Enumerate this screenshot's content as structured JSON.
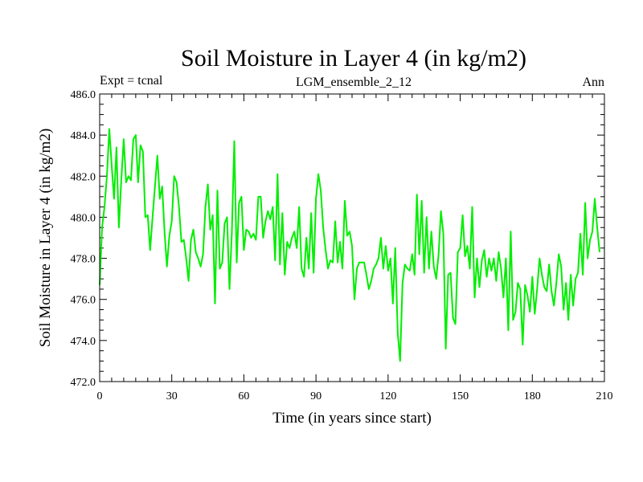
{
  "chart_data": {
    "type": "line",
    "title": "Soil Moisture in Layer 4 (in kg/m2)",
    "subtitle_left": "Expt = tcnal",
    "subtitle_center": "LGM_ensemble_2_12",
    "subtitle_right": "Ann",
    "xlabel": "Time (in years since start)",
    "ylabel": "Soil Moisture in Layer 4 (in kg/m2)",
    "xlim": [
      0,
      210
    ],
    "ylim": [
      472,
      486
    ],
    "x_ticks": [
      0,
      30,
      60,
      90,
      120,
      150,
      180,
      210
    ],
    "x_tick_labels": [
      "0",
      "30",
      "60",
      "90",
      "120",
      "150",
      "180",
      "210"
    ],
    "y_ticks": [
      472,
      474,
      476,
      478,
      480,
      482,
      484,
      486
    ],
    "y_tick_labels": [
      "472.0",
      "474.0",
      "476.0",
      "478.0",
      "480.0",
      "482.0",
      "484.0",
      "486.0"
    ],
    "grid": false,
    "series": [
      {
        "name": "Soil Moisture",
        "color": "#00ee00",
        "x_start": 0,
        "x_step": 1,
        "values": [
          476.7,
          479.5,
          480.5,
          482.0,
          484.3,
          482.5,
          480.9,
          483.4,
          479.5,
          481.8,
          483.8,
          481.7,
          482.0,
          481.8,
          483.8,
          484.0,
          481.7,
          483.5,
          483.2,
          480.0,
          480.1,
          478.4,
          480.0,
          481.5,
          483.0,
          480.9,
          481.5,
          479.3,
          477.6,
          479.1,
          479.8,
          482.0,
          481.7,
          480.5,
          478.8,
          478.9,
          478.0,
          476.9,
          478.9,
          479.4,
          478.3,
          478.0,
          477.6,
          478.2,
          480.5,
          481.6,
          479.4,
          480.1,
          475.8,
          481.3,
          477.5,
          477.8,
          479.7,
          480.0,
          476.5,
          479.3,
          483.7,
          477.8,
          480.7,
          481.0,
          478.4,
          479.4,
          479.3,
          479.0,
          479.2,
          478.9,
          481.0,
          481.0,
          479.0,
          479.8,
          480.3,
          479.9,
          480.5,
          477.9,
          482.1,
          477.7,
          480.2,
          477.2,
          478.8,
          478.5,
          479.0,
          479.3,
          478.5,
          480.5,
          477.5,
          477.1,
          479.0,
          477.5,
          480.2,
          477.3,
          480.9,
          482.1,
          481.3,
          479.5,
          478.4,
          477.5,
          477.9,
          477.8,
          479.8,
          477.8,
          478.8,
          477.5,
          480.8,
          479.1,
          479.3,
          478.6,
          476.0,
          477.5,
          477.8,
          477.8,
          477.8,
          477.2,
          476.5,
          476.9,
          477.5,
          477.7,
          478.0,
          479.0,
          477.5,
          478.6,
          477.4,
          478.0,
          475.8,
          478.5,
          474.4,
          473.0,
          476.8,
          477.7,
          477.5,
          477.4,
          478.2,
          477.2,
          481.1,
          478.2,
          480.8,
          477.3,
          480.0,
          477.5,
          479.3,
          477.6,
          477.0,
          478.2,
          480.3,
          479.2,
          473.6,
          477.2,
          477.3,
          475.1,
          474.8,
          478.3,
          478.5,
          480.1,
          478.1,
          478.6,
          477.5,
          480.5,
          476.1,
          478.0,
          476.6,
          477.9,
          478.4,
          477.1,
          478.0,
          477.4,
          478.0,
          476.9,
          478.3,
          477.5,
          476.1,
          478.0,
          474.5,
          479.3,
          475.0,
          475.4,
          476.8,
          476.5,
          473.8,
          476.7,
          476.2,
          475.4,
          477.1,
          475.3,
          476.5,
          478.0,
          477.2,
          476.6,
          476.4,
          477.7,
          476.4,
          475.7,
          476.8,
          478.2,
          477.6,
          475.5,
          476.8,
          475.0,
          477.2,
          475.7,
          477.0,
          477.3,
          479.2,
          477.2,
          480.7,
          478.0,
          478.9,
          479.3,
          480.9,
          479.5,
          478.3
        ]
      }
    ]
  }
}
